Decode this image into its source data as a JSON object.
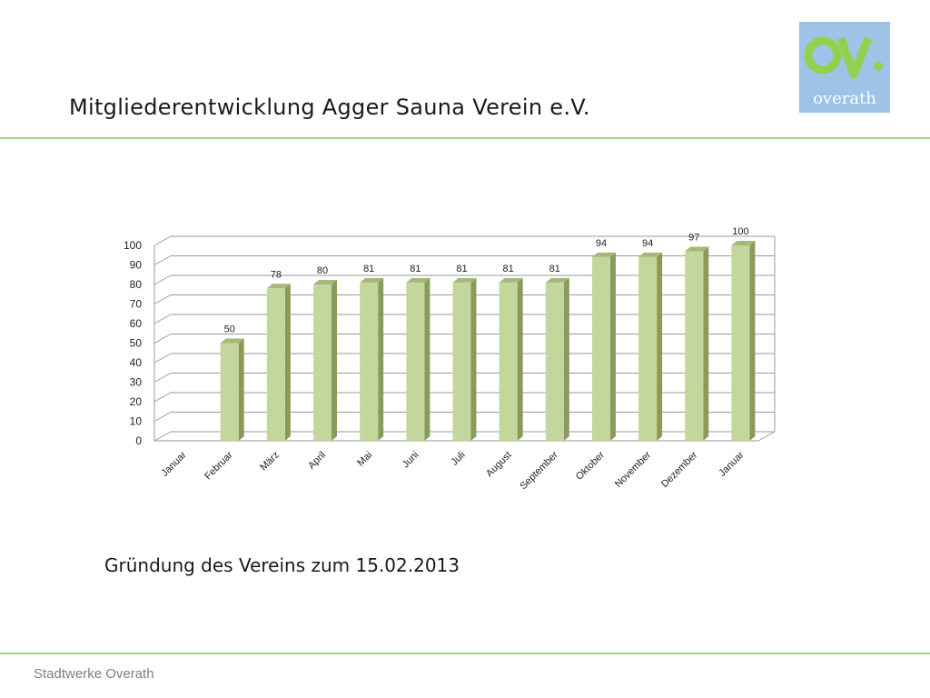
{
  "slide": {
    "title": "Mitgliederentwicklung Agger Sauna Verein e.V.",
    "subtitle": "Gründung des Vereins zum 15.02.2013",
    "footer": "Stadtwerke Overath",
    "logo_text": "overath"
  },
  "colors": {
    "accent_line": "#a9d18e",
    "bar_front": "#c3d69b",
    "bar_side": "#8a9a5b",
    "bar_top": "#a5b77a",
    "logo_bg": "#9dc3e6",
    "logo_mark": "#92d050"
  },
  "chart_data": {
    "type": "bar",
    "categories": [
      "Januar",
      "Februar",
      "März",
      "April",
      "Mai",
      "Juni",
      "Juli",
      "August",
      "September",
      "Oktober",
      "November",
      "Dezember",
      "Januar"
    ],
    "values": [
      null,
      50,
      78,
      80,
      81,
      81,
      81,
      81,
      81,
      94,
      94,
      97,
      100
    ],
    "data_labels": [
      "",
      "50",
      "78",
      "80",
      "81",
      "81",
      "81",
      "81",
      "81",
      "94",
      "94",
      "97",
      "100"
    ],
    "ylim": [
      0,
      100
    ],
    "yticks": [
      0,
      10,
      20,
      30,
      40,
      50,
      60,
      70,
      80,
      90,
      100
    ],
    "grid": true,
    "legend": "none",
    "style": "3d-bar"
  }
}
